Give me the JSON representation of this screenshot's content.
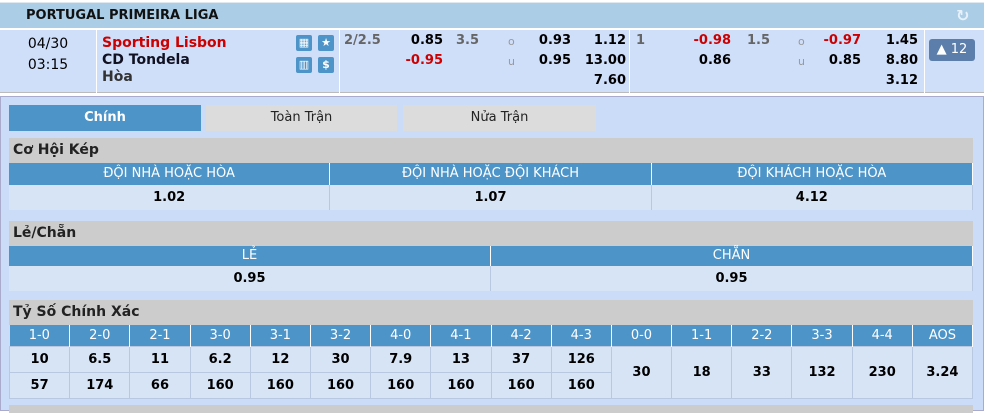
{
  "league": {
    "title": "PORTUGAL PRIMEIRA LIGA",
    "refresh_icon": "refresh-icon"
  },
  "match": {
    "date": "04/30",
    "time": "03:15",
    "home": "Sporting Lisbon",
    "away": "CD Tondela",
    "draw": "Hòa",
    "ft": {
      "hdp_line": "2/2.5",
      "hdp_home": "0.85",
      "hdp_away": "-0.95",
      "ou_line": "3.5",
      "o": "o",
      "u": "u",
      "over": "0.93",
      "under": "0.95",
      "x1": "1.12",
      "x2": "13.00",
      "xd": "7.60"
    },
    "ht": {
      "hdp_line": "1",
      "hdp_home": "-0.98",
      "hdp_away": "0.86",
      "ou_line": "1.5",
      "o": "o",
      "u": "u",
      "over": "-0.97",
      "under": "0.85",
      "x1": "1.45",
      "x2": "8.80",
      "xd": "3.12"
    },
    "more_button": "▲ 12"
  },
  "tabs": [
    {
      "label": "Chính",
      "active": true
    },
    {
      "label": "Toàn Trận"
    },
    {
      "label": "Nửa Trận"
    }
  ],
  "double_chance": {
    "title": "Cơ Hội Kép",
    "headers": [
      "ĐỘI NHÀ HOẶC HÒA",
      "ĐỘI NHÀ HOẶC ĐỘI KHÁCH",
      "ĐỘI KHÁCH HOẶC HÒA"
    ],
    "values": [
      "1.02",
      "1.07",
      "4.12"
    ]
  },
  "odd_even": {
    "title": "Lẻ/Chẵn",
    "headers": [
      "LẺ",
      "CHẴN"
    ],
    "values": [
      "0.95",
      "0.95"
    ]
  },
  "correct_score": {
    "title": "Tỷ Số Chính Xác",
    "win_headers": [
      "1-0",
      "2-0",
      "2-1",
      "3-0",
      "3-1",
      "3-2",
      "4-0",
      "4-1",
      "4-2",
      "4-3"
    ],
    "draw_headers": [
      "0-0",
      "1-1",
      "2-2",
      "3-3",
      "4-4",
      "AOS"
    ],
    "home_values": [
      "10",
      "6.5",
      "11",
      "6.2",
      "12",
      "30",
      "7.9",
      "13",
      "37",
      "126"
    ],
    "away_values": [
      "57",
      "174",
      "66",
      "160",
      "160",
      "160",
      "160",
      "160",
      "160",
      "160"
    ],
    "draw_values": [
      "30",
      "18",
      "33",
      "132",
      "230",
      "3.24"
    ]
  },
  "colors": {
    "header_bg": "#abcde6",
    "accent_blue": "#4d94c8",
    "home_red": "#cc0000"
  }
}
